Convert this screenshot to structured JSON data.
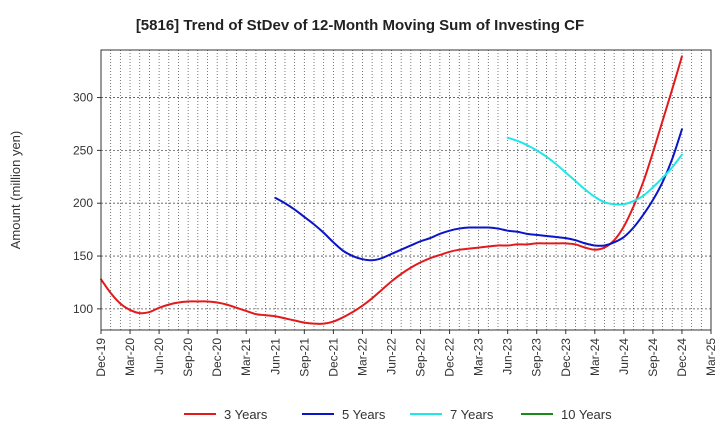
{
  "chart_data": {
    "type": "line",
    "title": "[5816]  Trend of StDev of 12-Month Moving Sum of Investing CF",
    "ylabel": "Amount (million yen)",
    "xlabel": "",
    "ylim": [
      80,
      345
    ],
    "yticks": [
      100,
      150,
      200,
      250,
      300
    ],
    "x_ticks": [
      "Dec-19",
      "Mar-20",
      "Jun-20",
      "Sep-20",
      "Dec-20",
      "Mar-21",
      "Jun-21",
      "Sep-21",
      "Dec-21",
      "Mar-22",
      "Jun-22",
      "Sep-22",
      "Dec-22",
      "Mar-23",
      "Jun-23",
      "Sep-23",
      "Dec-23",
      "Mar-24",
      "Jun-24",
      "Sep-24",
      "Dec-24",
      "Mar-25"
    ],
    "grid": true,
    "legend_position": "bottom",
    "series": [
      {
        "name": "3 Years",
        "color": "#e31a1c",
        "x": [
          "Dec-19",
          "Jan-20",
          "Feb-20",
          "Mar-20",
          "Apr-20",
          "May-20",
          "Jun-20",
          "Jul-20",
          "Aug-20",
          "Sep-20",
          "Oct-20",
          "Nov-20",
          "Dec-20",
          "Jan-21",
          "Feb-21",
          "Mar-21",
          "Apr-21",
          "May-21",
          "Jun-21",
          "Jul-21",
          "Aug-21",
          "Sep-21",
          "Oct-21",
          "Nov-21",
          "Dec-21",
          "Jan-22",
          "Feb-22",
          "Mar-22",
          "Apr-22",
          "May-22",
          "Jun-22",
          "Jul-22",
          "Aug-22",
          "Sep-22",
          "Oct-22",
          "Nov-22",
          "Dec-22",
          "Jan-23",
          "Feb-23",
          "Mar-23",
          "Apr-23",
          "May-23",
          "Jun-23",
          "Jul-23",
          "Aug-23",
          "Sep-23",
          "Oct-23",
          "Nov-23",
          "Dec-23",
          "Jan-24",
          "Feb-24",
          "Mar-24",
          "Apr-24",
          "May-24",
          "Jun-24",
          "Jul-24",
          "Aug-24",
          "Sep-24",
          "Oct-24",
          "Nov-24",
          "Dec-24"
        ],
        "values": [
          128,
          115,
          105,
          99,
          96,
          97,
          101,
          104,
          106,
          107,
          107,
          107,
          106,
          104,
          101,
          98,
          95,
          94,
          93,
          91,
          89,
          87,
          86,
          86,
          88,
          92,
          97,
          103,
          110,
          118,
          126,
          133,
          139,
          144,
          148,
          151,
          154,
          156,
          157,
          158,
          159,
          160,
          160,
          161,
          161,
          162,
          162,
          162,
          162,
          161,
          158,
          156,
          158,
          165,
          178,
          197,
          220,
          248,
          278,
          308,
          339
        ]
      },
      {
        "name": "5 Years",
        "color": "#0a14c8",
        "x": [
          "Jun-21",
          "Jul-21",
          "Aug-21",
          "Sep-21",
          "Oct-21",
          "Nov-21",
          "Dec-21",
          "Jan-22",
          "Feb-22",
          "Mar-22",
          "Apr-22",
          "May-22",
          "Jun-22",
          "Jul-22",
          "Aug-22",
          "Sep-22",
          "Oct-22",
          "Nov-22",
          "Dec-22",
          "Jan-23",
          "Feb-23",
          "Mar-23",
          "Apr-23",
          "May-23",
          "Jun-23",
          "Jul-23",
          "Aug-23",
          "Sep-23",
          "Oct-23",
          "Nov-23",
          "Dec-23",
          "Jan-24",
          "Feb-24",
          "Mar-24",
          "Apr-24",
          "May-24",
          "Jun-24",
          "Jul-24",
          "Aug-24",
          "Sep-24",
          "Oct-24",
          "Nov-24",
          "Dec-24"
        ],
        "values": [
          205,
          200,
          194,
          187,
          180,
          172,
          163,
          155,
          150,
          147,
          146,
          148,
          152,
          156,
          160,
          164,
          167,
          171,
          174,
          176,
          177,
          177,
          177,
          176,
          174,
          173,
          171,
          170,
          169,
          168,
          167,
          165,
          162,
          160,
          160,
          163,
          168,
          177,
          189,
          203,
          220,
          242,
          270
        ]
      },
      {
        "name": "7 Years",
        "color": "#22e5e8",
        "x": [
          "Jun-23",
          "Jul-23",
          "Aug-23",
          "Sep-23",
          "Oct-23",
          "Nov-23",
          "Dec-23",
          "Jan-24",
          "Feb-24",
          "Mar-24",
          "Apr-24",
          "May-24",
          "Jun-24",
          "Jul-24",
          "Aug-24",
          "Sep-24",
          "Oct-24",
          "Nov-24",
          "Dec-24"
        ],
        "values": [
          262,
          259,
          255,
          250,
          244,
          237,
          229,
          221,
          213,
          206,
          201,
          199,
          199,
          202,
          207,
          215,
          224,
          234,
          246
        ]
      },
      {
        "name": "10 Years",
        "color": "#1a8a1a",
        "x": [],
        "values": []
      }
    ]
  }
}
